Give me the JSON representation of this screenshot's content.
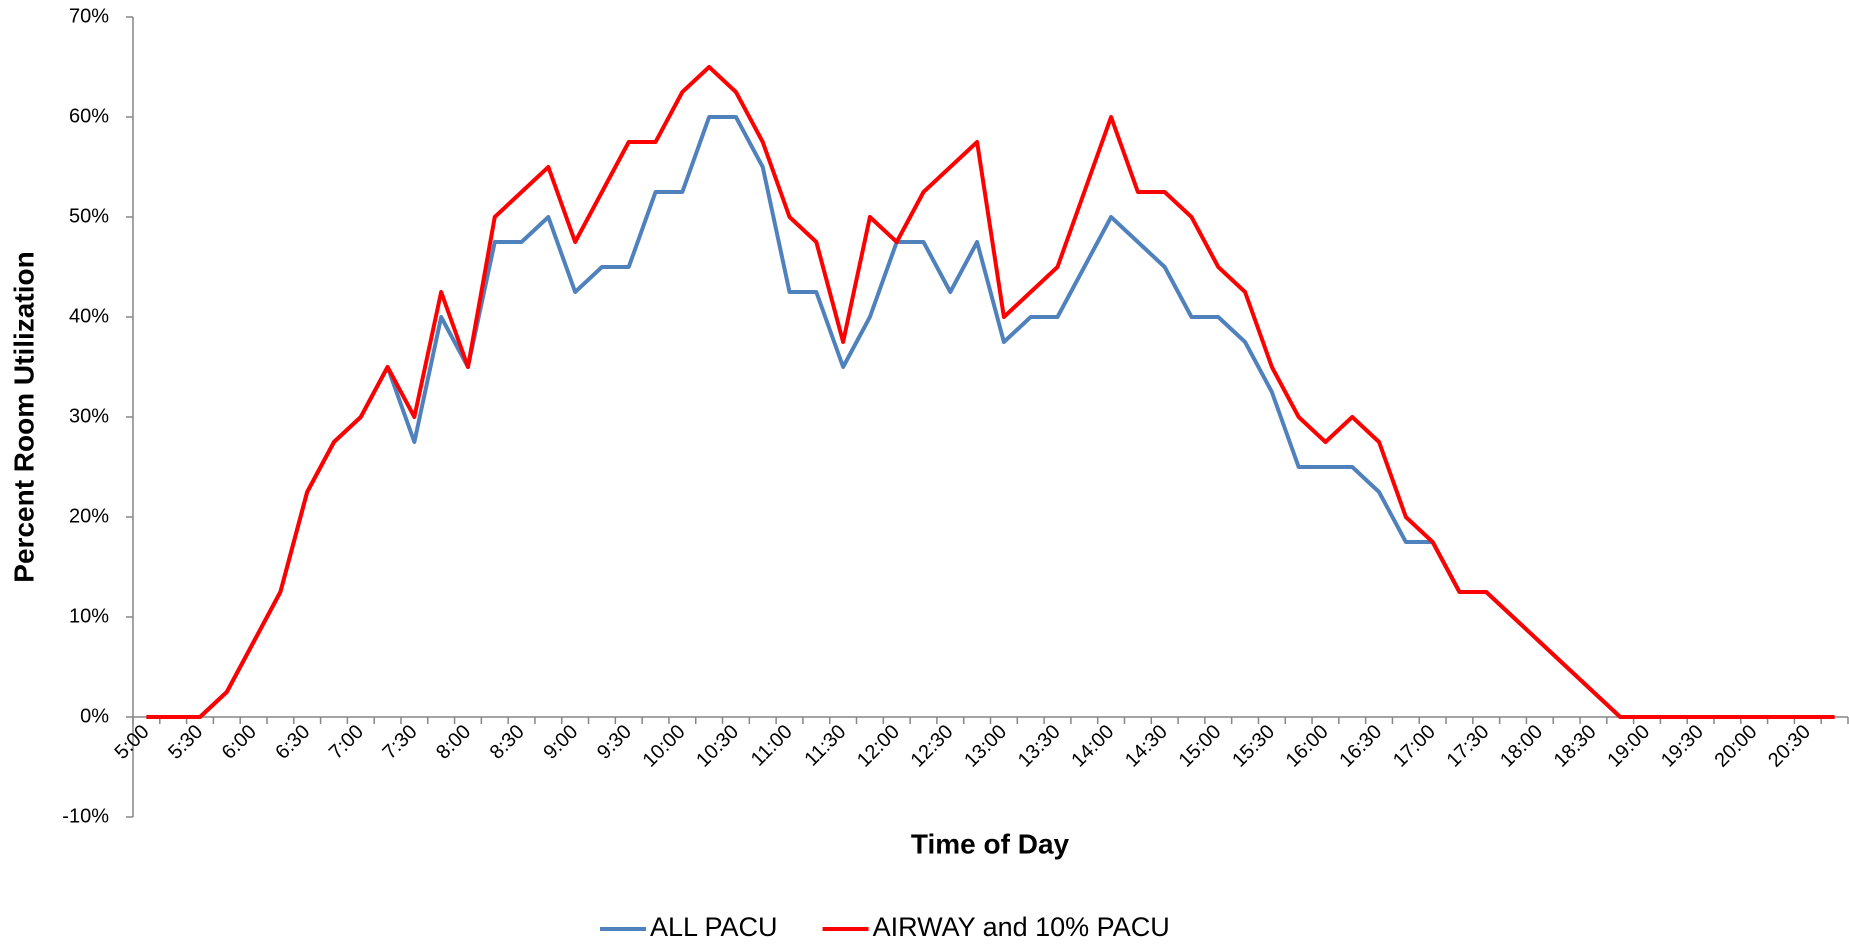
{
  "chart_data": {
    "type": "line",
    "x_label": "Time of Day",
    "y_label": "Percent Room Utilization",
    "categories": [
      "5:00",
      null,
      "5:30",
      null,
      "6:00",
      null,
      "6:30",
      null,
      "7:00",
      null,
      "7:30",
      null,
      "8:00",
      null,
      "8:30",
      null,
      "9:00",
      null,
      "9:30",
      null,
      "10:00",
      null,
      "10:30",
      null,
      "11:00",
      null,
      "11:30",
      null,
      "12:00",
      null,
      "12:30",
      null,
      "13:00",
      null,
      "13:30",
      null,
      "14:00",
      null,
      "14:30",
      null,
      "15:00",
      null,
      "15:30",
      null,
      "16:00",
      null,
      "16:30",
      null,
      "17:00",
      null,
      "17:30",
      null,
      "18:00",
      null,
      "18:30",
      null,
      "19:00",
      null,
      "19:30",
      null,
      "20:00",
      null,
      "20:30",
      null
    ],
    "series": [
      {
        "name": "ALL PACU",
        "color": "#4f81bd",
        "values": [
          0,
          0,
          0,
          2.5,
          7.5,
          12.5,
          22.5,
          27.5,
          30,
          35,
          27.5,
          40,
          35,
          47.5,
          47.5,
          50,
          42.5,
          45,
          45,
          52.5,
          52.5,
          60,
          60,
          55,
          42.5,
          42.5,
          35,
          40,
          47.5,
          47.5,
          42.5,
          47.5,
          37.5,
          40,
          40,
          45,
          50,
          47.5,
          45,
          40,
          40,
          37.5,
          32.5,
          25,
          25,
          25,
          22.5,
          17.5,
          17.5,
          12.5,
          12.5,
          10,
          7.5,
          5,
          2.5,
          0,
          0,
          0,
          0,
          0,
          0,
          0,
          0,
          0
        ]
      },
      {
        "name": "AIRWAY and 10% PACU",
        "color": "#ff0000",
        "values": [
          0,
          0,
          0,
          2.5,
          7.5,
          12.5,
          22.5,
          27.5,
          30,
          35,
          30,
          42.5,
          35,
          50,
          52.5,
          55,
          47.5,
          52.5,
          57.5,
          57.5,
          62.5,
          65,
          62.5,
          57.5,
          50,
          47.5,
          37.5,
          50,
          47.5,
          52.5,
          55,
          57.5,
          40,
          42.5,
          45,
          52.5,
          60,
          52.5,
          52.5,
          50,
          45,
          42.5,
          35,
          30,
          27.5,
          30,
          27.5,
          20,
          17.5,
          12.5,
          12.5,
          10,
          7.5,
          5,
          2.5,
          0,
          0,
          0,
          0,
          0,
          0,
          0,
          0,
          0
        ]
      }
    ],
    "ylim": [
      -10,
      70
    ],
    "yticks": [
      {
        "value": -10,
        "label": "-10%"
      },
      {
        "value": 0,
        "label": "0%"
      },
      {
        "value": 10,
        "label": "10%"
      },
      {
        "value": 20,
        "label": "20%"
      },
      {
        "value": 30,
        "label": "30%"
      },
      {
        "value": 40,
        "label": "40%"
      },
      {
        "value": 50,
        "label": "50%"
      },
      {
        "value": 60,
        "label": "60%"
      },
      {
        "value": 70,
        "label": "70%"
      }
    ],
    "grid": false,
    "legend": "bottom"
  }
}
